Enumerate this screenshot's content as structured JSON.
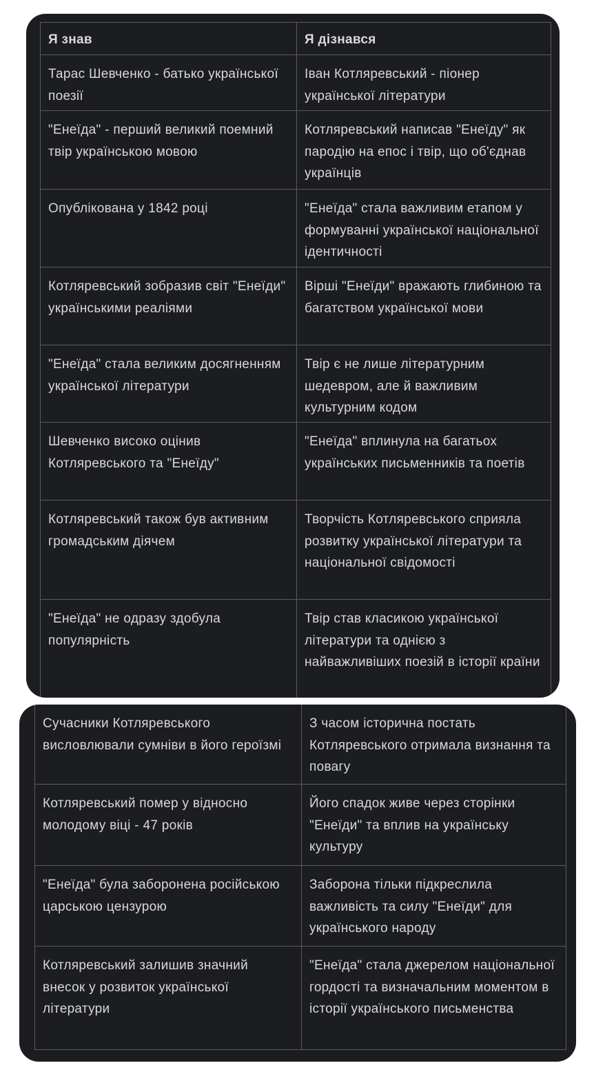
{
  "table": {
    "headers": [
      "Я знав",
      "Я дізнався"
    ],
    "rows": [
      [
        "Тарас Шевченко - батько української поезії",
        "Іван Котляревський - піонер української літератури"
      ],
      [
        "\"Енеїда\" - перший великий поемний твір українською мовою",
        "Котляревський написав \"Енеїду\" як пародію на епос і твір, що об'єднав українців"
      ],
      [
        "Опублікована у 1842 році",
        "\"Енеїда\" стала важливим етапом у формуванні української національної ідентичності"
      ],
      [
        "Котляревський зобразив світ \"Енеїди\" українськими реаліями",
        "Вірші \"Енеїди\" вражають глибиною та багатством української мови"
      ],
      [
        "\"Енеїда\" стала великим досягненням української літератури",
        "Твір є не лише літературним шедевром, але й важливим культурним кодом"
      ],
      [
        "Шевченко високо оцінив Котляревського та \"Енеїду\"",
        "\"Енеїда\" вплинула на багатьох українських письменників та поетів"
      ],
      [
        "Котляревський також був активним громадським діячем",
        "Творчість Котляревського сприяла розвитку української літератури та національної свідомості"
      ],
      [
        "\"Енеїда\" не одразу здобула популярність",
        "Твір став класикою української літератури та однією з найважливіших поезій в історії країни"
      ]
    ],
    "rows_continued": [
      [
        "Сучасники Котляревського висловлювали сумніви в його героїзмі",
        "З часом історична постать Котляревського отримала визнання та повагу"
      ],
      [
        "Котляревський помер у відносно молодому віці - 47 років",
        "Його спадок живе через сторінки \"Енеїди\" та вплив на українську культуру"
      ],
      [
        "\"Енеїда\" була заборонена російською царською цензурою",
        "Заборона тільки підкреслила важливість та силу \"Енеїди\" для українського народу"
      ],
      [
        "Котляревський залишив значний внесок у розвиток української літератури",
        "\"Енеїда\" стала джерелом національної гордості та визначальним моментом в історії українського письменства"
      ]
    ]
  }
}
